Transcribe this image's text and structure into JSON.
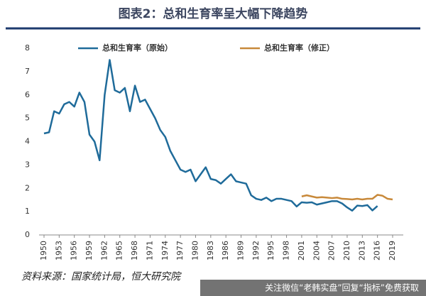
{
  "chart_data": {
    "type": "line",
    "title": "图表2：总和生育率呈大幅下降趋势",
    "source": "资料来源：国家统计局，恒大研究院",
    "watermark": "关注微信“老韩实盘”回复“指标”免费获取",
    "x": [
      1950,
      1951,
      1952,
      1953,
      1954,
      1955,
      1956,
      1957,
      1958,
      1959,
      1960,
      1961,
      1962,
      1963,
      1964,
      1965,
      1966,
      1967,
      1968,
      1969,
      1970,
      1971,
      1972,
      1973,
      1974,
      1975,
      1976,
      1977,
      1978,
      1979,
      1980,
      1981,
      1982,
      1983,
      1984,
      1985,
      1986,
      1987,
      1988,
      1989,
      1990,
      1991,
      1992,
      1993,
      1994,
      1995,
      1996,
      1997,
      1998,
      1999,
      2000,
      2001,
      2002,
      2003,
      2004,
      2005,
      2006,
      2007,
      2008,
      2009,
      2010,
      2011,
      2012,
      2013,
      2014,
      2015,
      2016,
      2017,
      2018,
      2019
    ],
    "series": [
      {
        "name": "总和生育率（原始）",
        "color": "#1f6b9a",
        "values": [
          4.35,
          4.4,
          5.3,
          5.2,
          5.6,
          5.7,
          5.5,
          6.1,
          5.7,
          4.3,
          4.0,
          3.2,
          6.0,
          7.5,
          6.2,
          6.1,
          6.3,
          5.3,
          6.4,
          5.7,
          5.8,
          5.4,
          5.0,
          4.5,
          4.2,
          3.6,
          3.2,
          2.8,
          2.7,
          2.8,
          2.3,
          2.6,
          2.9,
          2.4,
          2.35,
          2.2,
          2.4,
          2.6,
          2.3,
          2.25,
          2.2,
          1.7,
          1.55,
          1.5,
          1.6,
          1.45,
          1.55,
          1.55,
          1.5,
          1.45,
          1.22,
          1.4,
          1.38,
          1.4,
          1.3,
          1.35,
          1.4,
          1.45,
          1.45,
          1.35,
          1.18,
          1.04,
          1.26,
          1.24,
          1.28,
          1.05,
          1.24,
          null,
          null,
          null
        ]
      },
      {
        "name": "总和生育率（修正）",
        "color": "#c8893a",
        "values": [
          null,
          null,
          null,
          null,
          null,
          null,
          null,
          null,
          null,
          null,
          null,
          null,
          null,
          null,
          null,
          null,
          null,
          null,
          null,
          null,
          null,
          null,
          null,
          null,
          null,
          null,
          null,
          null,
          null,
          null,
          null,
          null,
          null,
          null,
          null,
          null,
          null,
          null,
          null,
          null,
          null,
          null,
          null,
          null,
          null,
          null,
          null,
          null,
          null,
          null,
          null,
          1.65,
          1.7,
          1.65,
          1.6,
          1.62,
          1.6,
          1.58,
          1.6,
          1.55,
          1.54,
          1.52,
          1.55,
          1.52,
          1.55,
          1.55,
          1.72,
          1.68,
          1.55,
          1.52
        ]
      }
    ],
    "xlim": [
      1950,
      2019
    ],
    "xticks": [
      1950,
      1953,
      1956,
      1959,
      1962,
      1965,
      1968,
      1971,
      1974,
      1977,
      1980,
      1983,
      1986,
      1989,
      1992,
      1995,
      1998,
      2001,
      2004,
      2007,
      2010,
      2013,
      2016,
      2019
    ],
    "ylim": [
      0,
      8
    ],
    "yticks": [
      0,
      1,
      2,
      3,
      4,
      5,
      6,
      7,
      8
    ]
  }
}
